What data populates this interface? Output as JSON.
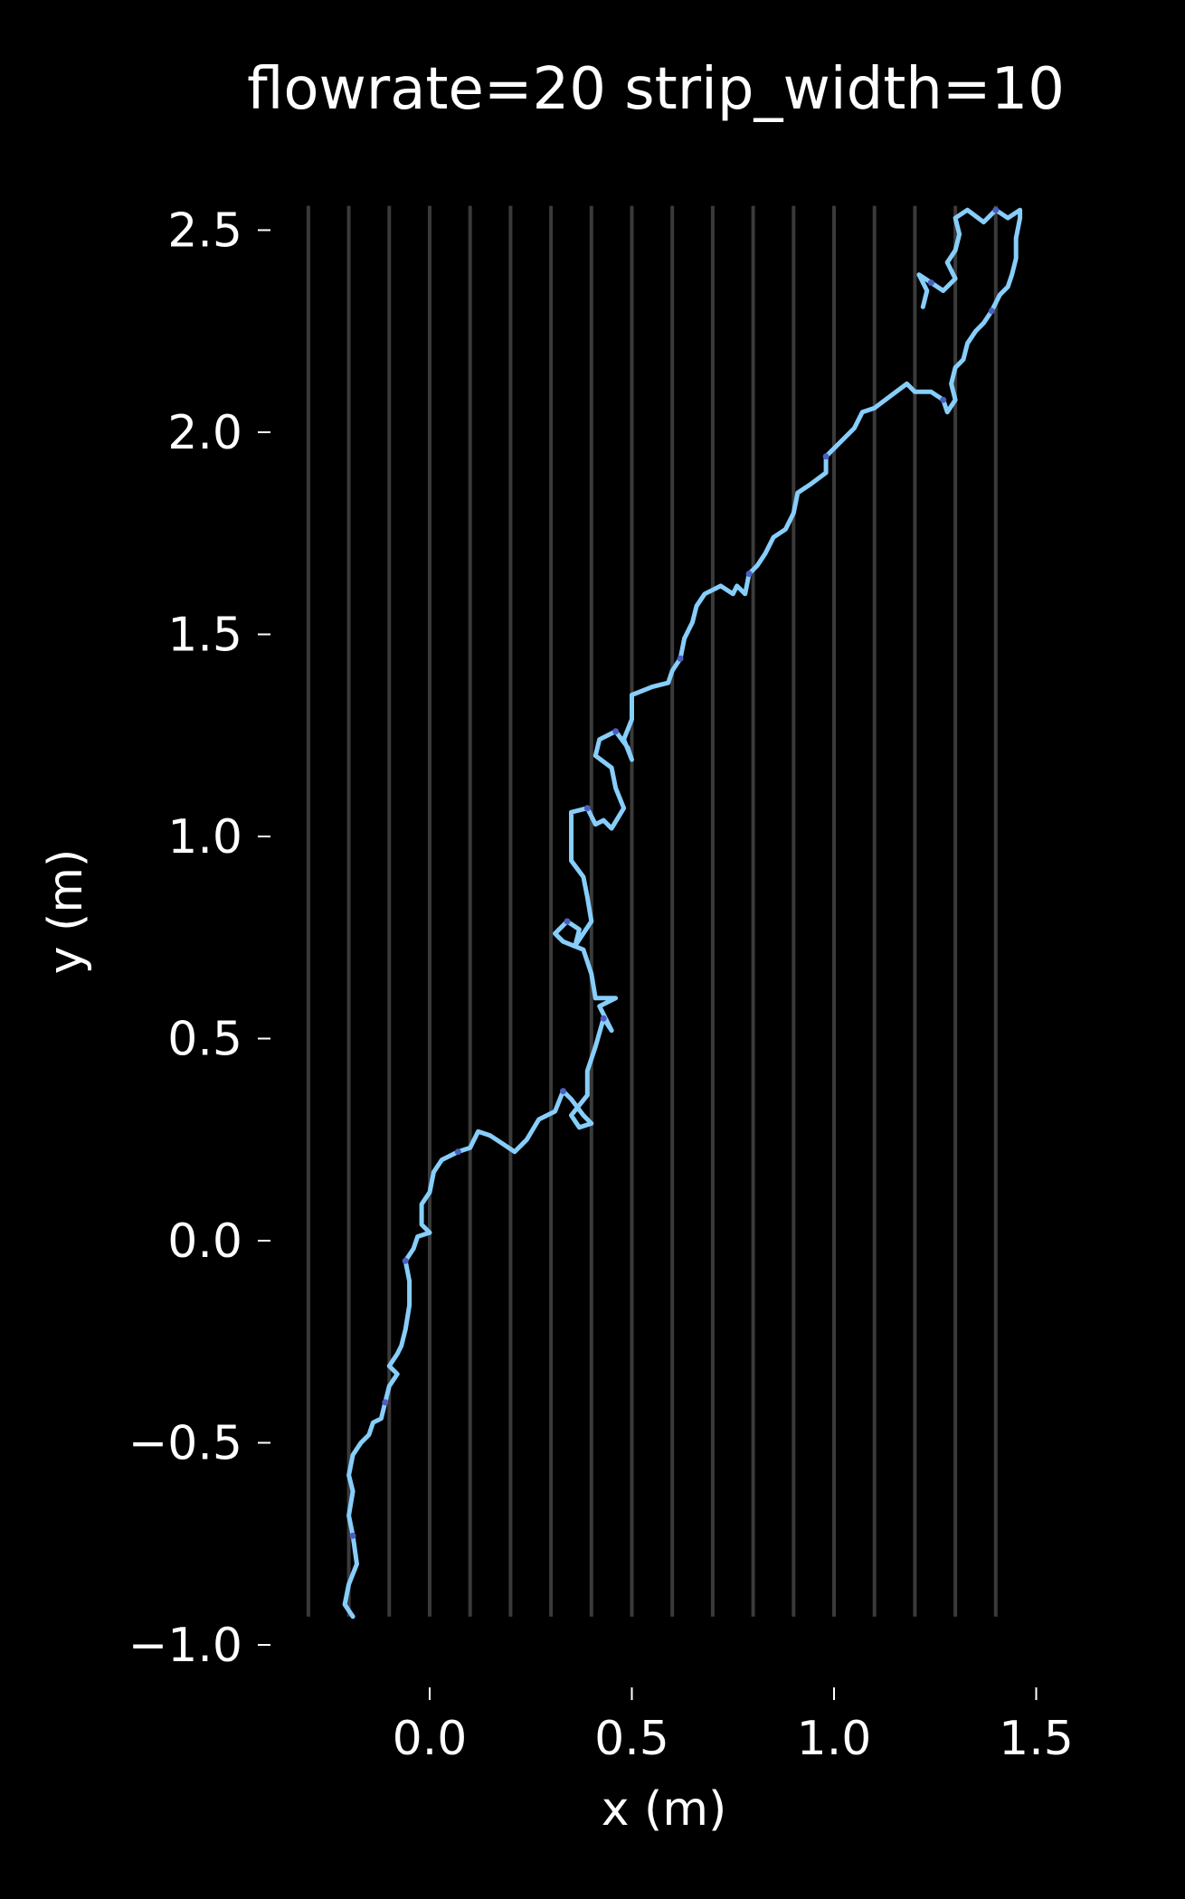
{
  "chart_data": {
    "type": "line",
    "title": "flowrate=20 strip_width=10",
    "xlabel": "x (m)",
    "ylabel": "y (m)",
    "xlim": [
      -0.3,
      1.5
    ],
    "ylim": [
      -1.0,
      2.55
    ],
    "x_ticks": [
      0.0,
      0.5,
      1.0,
      1.5
    ],
    "x_tick_labels": [
      "0.0",
      "0.5",
      "1.0",
      "1.5"
    ],
    "y_ticks": [
      -1.0,
      -0.5,
      0.0,
      0.5,
      1.0,
      1.5,
      2.0,
      2.5
    ],
    "y_tick_labels": [
      "−1.0",
      "−0.5",
      "0.0",
      "0.5",
      "1.0",
      "1.5",
      "2.0",
      "2.5"
    ],
    "grid": false,
    "strips": {
      "x": [
        -0.3,
        -0.2,
        -0.1,
        0.0,
        0.1,
        0.2,
        0.3,
        0.4,
        0.5,
        0.6,
        0.7,
        0.8,
        0.9,
        1.0,
        1.1,
        1.2,
        1.3,
        1.4
      ],
      "y_range": [
        -0.93,
        2.56
      ],
      "color": "#3a3a3a"
    },
    "series": [
      {
        "color": "#87cefa",
        "accent_color": "#4a5fc0",
        "points": [
          [
            -0.19,
            -0.93
          ],
          [
            -0.21,
            -0.9
          ],
          [
            -0.2,
            -0.85
          ],
          [
            -0.18,
            -0.8
          ],
          [
            -0.19,
            -0.73
          ],
          [
            -0.2,
            -0.68
          ],
          [
            -0.19,
            -0.62
          ],
          [
            -0.2,
            -0.58
          ],
          [
            -0.19,
            -0.53
          ],
          [
            -0.17,
            -0.5
          ],
          [
            -0.15,
            -0.48
          ],
          [
            -0.14,
            -0.45
          ],
          [
            -0.12,
            -0.44
          ],
          [
            -0.11,
            -0.4
          ],
          [
            -0.1,
            -0.36
          ],
          [
            -0.08,
            -0.33
          ],
          [
            -0.1,
            -0.31
          ],
          [
            -0.08,
            -0.28
          ],
          [
            -0.07,
            -0.26
          ],
          [
            -0.06,
            -0.22
          ],
          [
            -0.05,
            -0.16
          ],
          [
            -0.05,
            -0.1
          ],
          [
            -0.06,
            -0.05
          ],
          [
            -0.04,
            -0.02
          ],
          [
            -0.03,
            0.01
          ],
          [
            0.0,
            0.02
          ],
          [
            -0.02,
            0.04
          ],
          [
            -0.02,
            0.09
          ],
          [
            0.0,
            0.12
          ],
          [
            0.01,
            0.17
          ],
          [
            0.03,
            0.2
          ],
          [
            0.07,
            0.22
          ],
          [
            0.1,
            0.23
          ],
          [
            0.12,
            0.27
          ],
          [
            0.15,
            0.26
          ],
          [
            0.18,
            0.24
          ],
          [
            0.21,
            0.22
          ],
          [
            0.24,
            0.25
          ],
          [
            0.27,
            0.3
          ],
          [
            0.31,
            0.32
          ],
          [
            0.33,
            0.37
          ],
          [
            0.35,
            0.35
          ],
          [
            0.38,
            0.31
          ],
          [
            0.4,
            0.29
          ],
          [
            0.37,
            0.28
          ],
          [
            0.35,
            0.31
          ],
          [
            0.39,
            0.36
          ],
          [
            0.39,
            0.42
          ],
          [
            0.41,
            0.48
          ],
          [
            0.43,
            0.55
          ],
          [
            0.45,
            0.52
          ],
          [
            0.42,
            0.58
          ],
          [
            0.46,
            0.6
          ],
          [
            0.41,
            0.6
          ],
          [
            0.4,
            0.66
          ],
          [
            0.38,
            0.72
          ],
          [
            0.33,
            0.74
          ],
          [
            0.31,
            0.76
          ],
          [
            0.34,
            0.79
          ],
          [
            0.37,
            0.77
          ],
          [
            0.36,
            0.73
          ],
          [
            0.4,
            0.79
          ],
          [
            0.39,
            0.85
          ],
          [
            0.38,
            0.9
          ],
          [
            0.35,
            0.94
          ],
          [
            0.35,
            1.0
          ],
          [
            0.35,
            1.06
          ],
          [
            0.39,
            1.07
          ],
          [
            0.41,
            1.03
          ],
          [
            0.43,
            1.04
          ],
          [
            0.45,
            1.02
          ],
          [
            0.48,
            1.07
          ],
          [
            0.46,
            1.12
          ],
          [
            0.45,
            1.17
          ],
          [
            0.41,
            1.2
          ],
          [
            0.42,
            1.24
          ],
          [
            0.46,
            1.26
          ],
          [
            0.49,
            1.22
          ],
          [
            0.5,
            1.19
          ],
          [
            0.48,
            1.24
          ],
          [
            0.5,
            1.29
          ],
          [
            0.5,
            1.35
          ],
          [
            0.55,
            1.37
          ],
          [
            0.59,
            1.38
          ],
          [
            0.6,
            1.41
          ],
          [
            0.62,
            1.44
          ],
          [
            0.63,
            1.49
          ],
          [
            0.65,
            1.53
          ],
          [
            0.66,
            1.57
          ],
          [
            0.68,
            1.6
          ],
          [
            0.72,
            1.62
          ],
          [
            0.75,
            1.6
          ],
          [
            0.76,
            1.62
          ],
          [
            0.78,
            1.6
          ],
          [
            0.79,
            1.65
          ],
          [
            0.81,
            1.67
          ],
          [
            0.83,
            1.7
          ],
          [
            0.85,
            1.74
          ],
          [
            0.88,
            1.76
          ],
          [
            0.9,
            1.8
          ],
          [
            0.91,
            1.85
          ],
          [
            0.94,
            1.87
          ],
          [
            0.98,
            1.9
          ],
          [
            0.98,
            1.94
          ],
          [
            1.01,
            1.97
          ],
          [
            1.05,
            2.01
          ],
          [
            1.07,
            2.05
          ],
          [
            1.1,
            2.06
          ],
          [
            1.14,
            2.09
          ],
          [
            1.18,
            2.12
          ],
          [
            1.2,
            2.1
          ],
          [
            1.24,
            2.1
          ],
          [
            1.27,
            2.08
          ],
          [
            1.28,
            2.05
          ],
          [
            1.3,
            2.08
          ],
          [
            1.29,
            2.12
          ],
          [
            1.3,
            2.16
          ],
          [
            1.32,
            2.18
          ],
          [
            1.33,
            2.22
          ],
          [
            1.35,
            2.25
          ],
          [
            1.37,
            2.27
          ],
          [
            1.39,
            2.3
          ],
          [
            1.41,
            2.34
          ],
          [
            1.43,
            2.36
          ],
          [
            1.44,
            2.39
          ],
          [
            1.45,
            2.43
          ],
          [
            1.45,
            2.48
          ],
          [
            1.46,
            2.53
          ],
          [
            1.46,
            2.55
          ],
          [
            1.43,
            2.53
          ],
          [
            1.4,
            2.55
          ],
          [
            1.37,
            2.52
          ],
          [
            1.33,
            2.55
          ],
          [
            1.3,
            2.53
          ],
          [
            1.31,
            2.49
          ],
          [
            1.3,
            2.45
          ],
          [
            1.28,
            2.42
          ],
          [
            1.3,
            2.38
          ],
          [
            1.27,
            2.35
          ],
          [
            1.24,
            2.37
          ],
          [
            1.21,
            2.39
          ],
          [
            1.23,
            2.35
          ],
          [
            1.22,
            2.31
          ]
        ]
      }
    ]
  }
}
